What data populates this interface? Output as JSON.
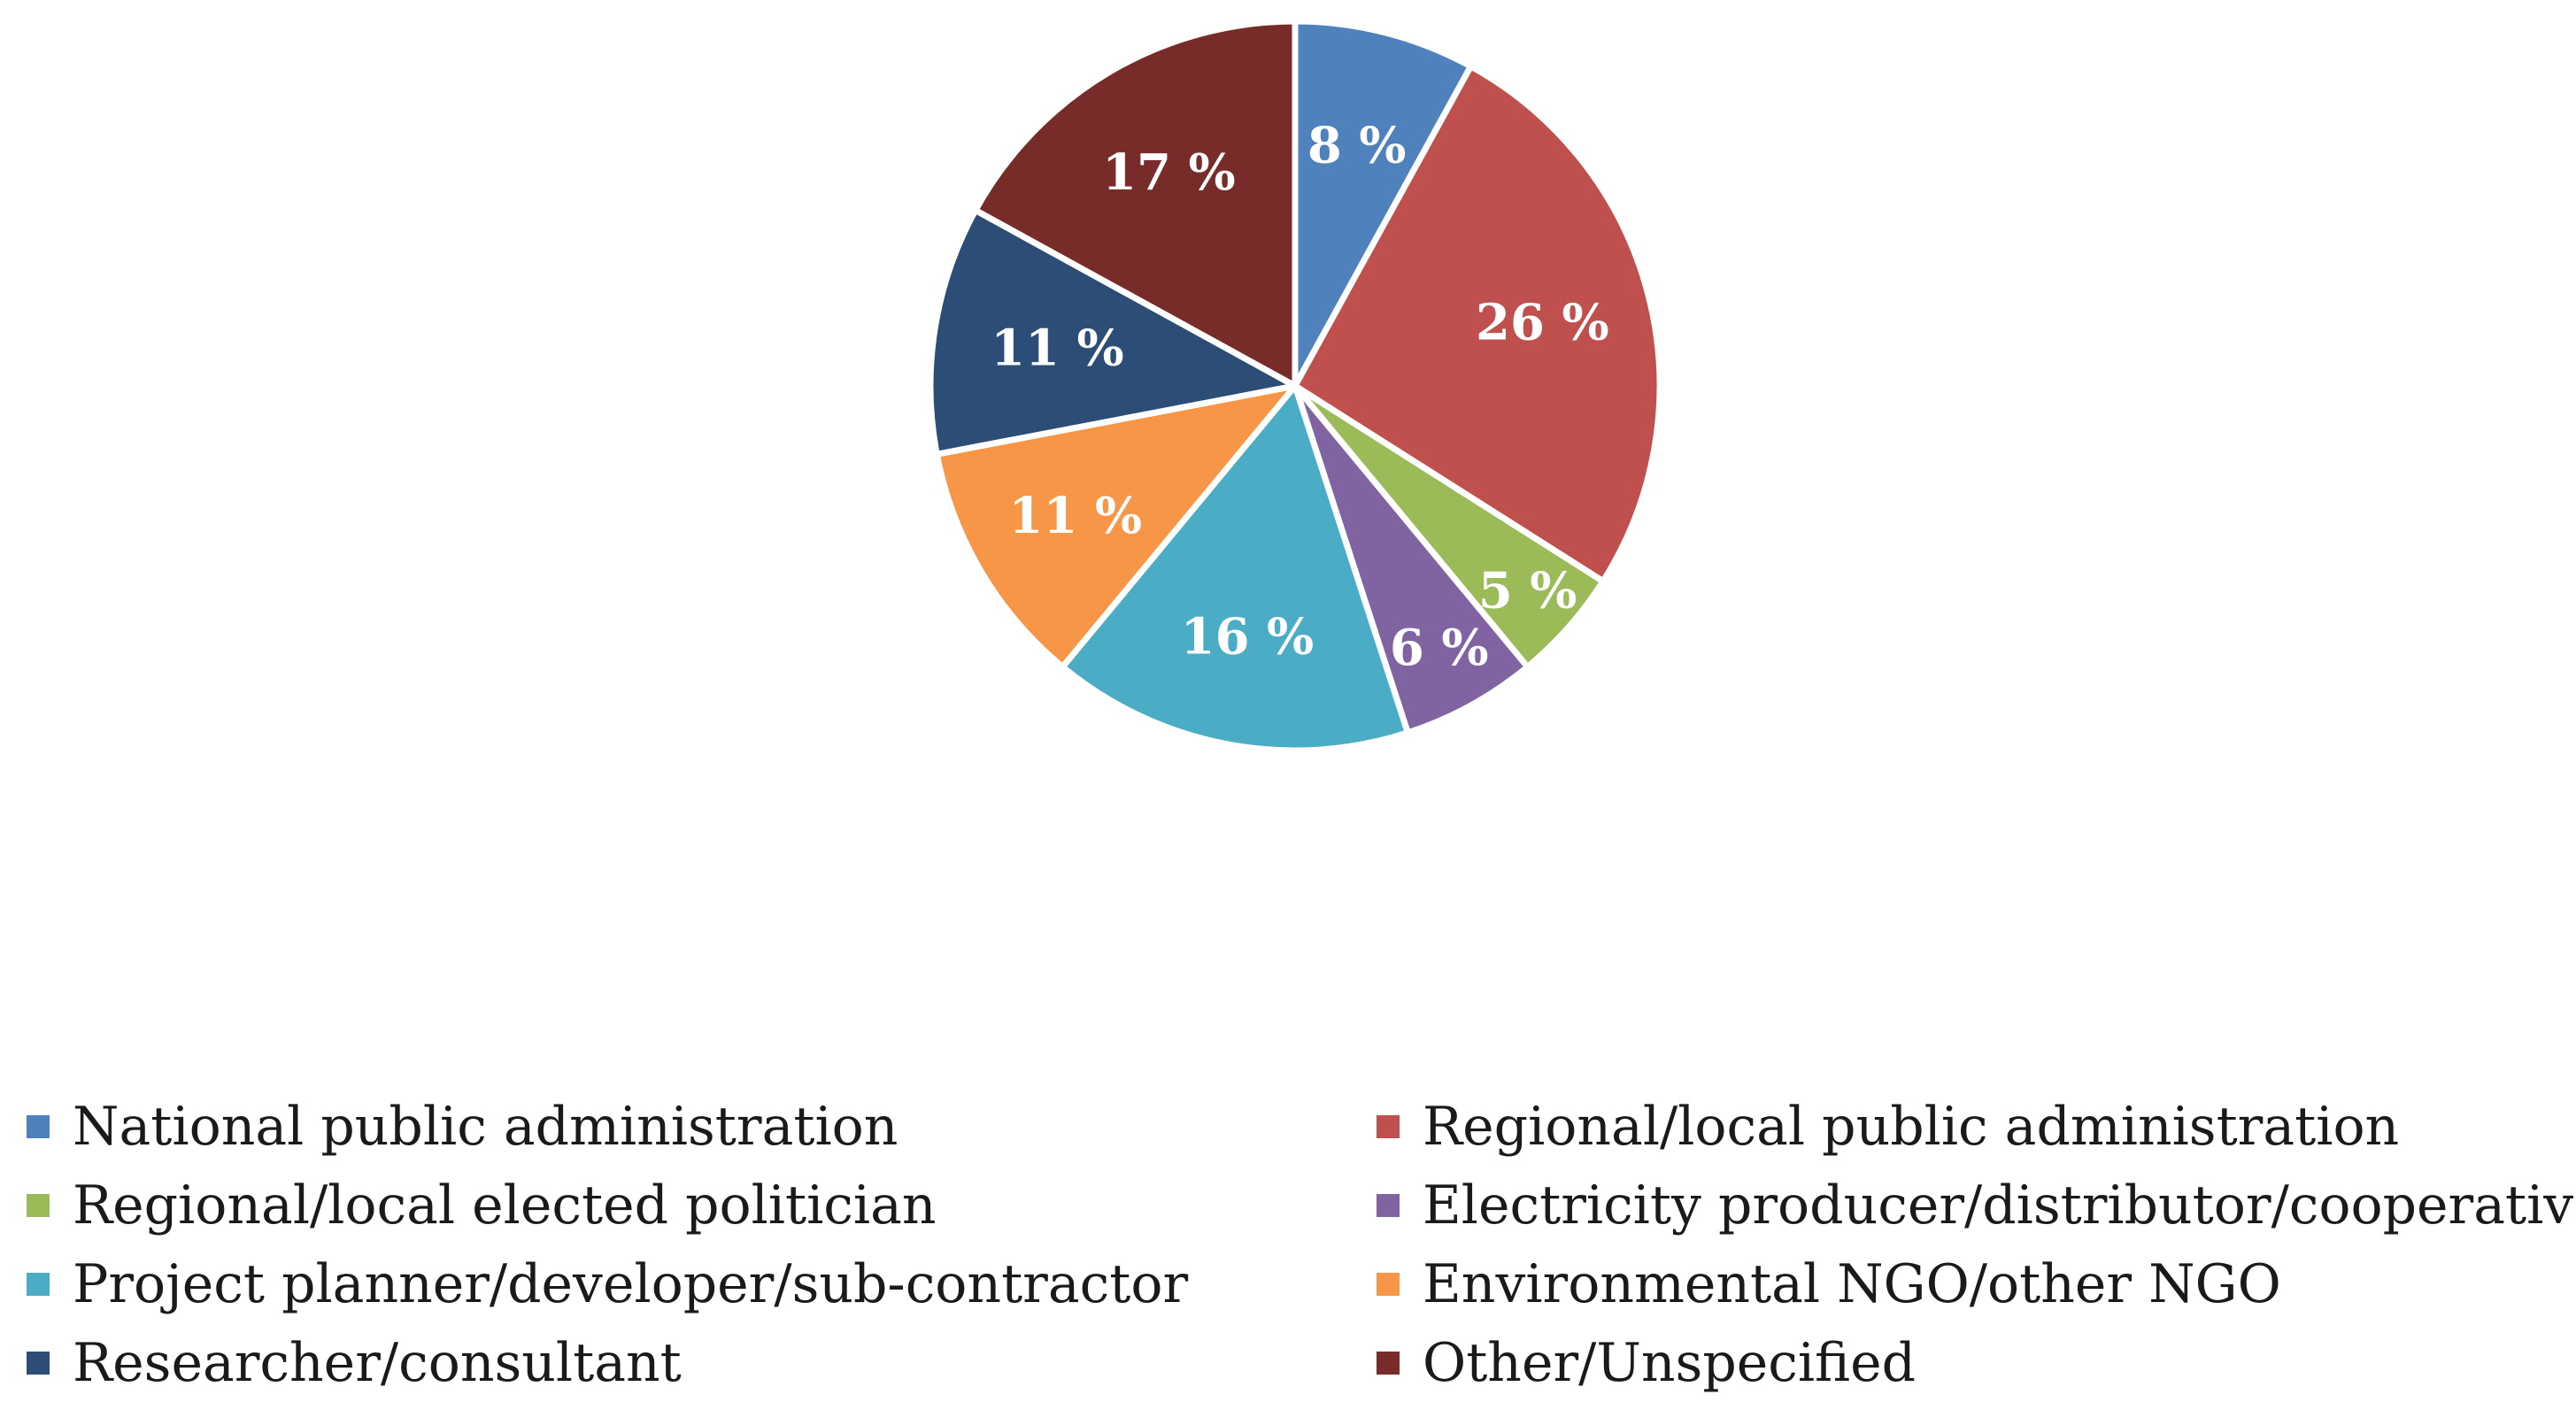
{
  "chart_data": {
    "type": "pie",
    "title": "",
    "categories": [
      "National public administration",
      "Regional/local public administration",
      "Regional/local elected politician",
      "Electricity producer/distributor/cooperative",
      "Project planner/developer/sub-contractor",
      "Environmental NGO/other NGO",
      "Researcher/consultant",
      "Other/Unspecified"
    ],
    "values": [
      8,
      26,
      5,
      6,
      16,
      11,
      11,
      17
    ],
    "labels": [
      "8 %",
      "26 %",
      "5 %",
      "6 %",
      "16 %",
      "11 %",
      "11 %",
      "17 %"
    ],
    "colors": [
      "#4F81BD",
      "#C0504D",
      "#9BBB59",
      "#8064A2",
      "#4BACC6",
      "#F79646",
      "#2C4D75",
      "#772C2A"
    ],
    "legend_position": "bottom",
    "legend_columns": 2
  }
}
